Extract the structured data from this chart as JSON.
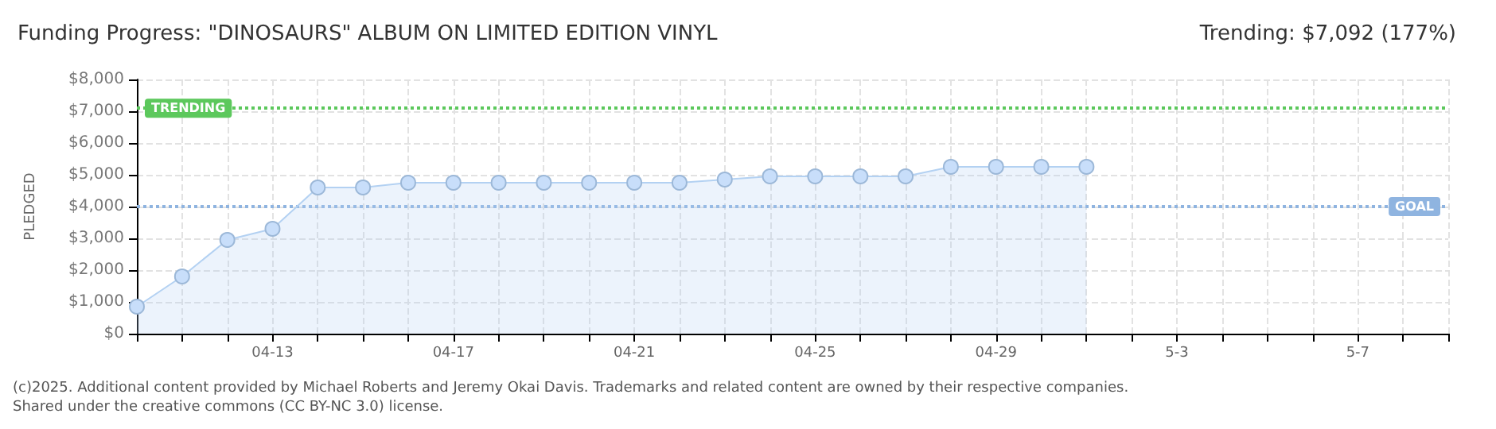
{
  "chart_data": {
    "type": "area",
    "title": "Funding Progress: \"DINOSAURS\" ALBUM ON LIMITED EDITION VINYL",
    "subtitle": "Trending: $7,092 (177%)",
    "ylabel": "PLEDGED",
    "x": [
      "2025-04-10",
      "2025-04-11",
      "2025-04-12",
      "2025-04-13",
      "2025-04-14",
      "2025-04-15",
      "2025-04-16",
      "2025-04-17",
      "2025-04-18",
      "2025-04-19",
      "2025-04-20",
      "2025-04-21",
      "2025-04-22",
      "2025-04-23",
      "2025-04-24",
      "2025-04-25",
      "2025-04-26",
      "2025-04-27",
      "2025-04-28",
      "2025-04-29",
      "2025-04-30",
      "2025-05-01"
    ],
    "series": [
      {
        "color": "#b3d1f2",
        "values": [
          850,
          1800,
          2950,
          3300,
          4600,
          4600,
          4750,
          4750,
          4750,
          4750,
          4750,
          4750,
          4750,
          4850,
          4950,
          4950,
          4950,
          4950,
          5250,
          5250,
          5250,
          5250
        ]
      }
    ],
    "xlim": [
      "2025-04-10",
      "2025-05-09"
    ],
    "xticks": [
      {
        "value": "2025-04-10",
        "label": null
      },
      {
        "value": "2025-04-11",
        "label": null
      },
      {
        "value": "2025-04-12",
        "label": null
      },
      {
        "value": "2025-04-13",
        "label": "04-13"
      },
      {
        "value": "2025-04-14",
        "label": null
      },
      {
        "value": "2025-04-15",
        "label": null
      },
      {
        "value": "2025-04-16",
        "label": null
      },
      {
        "value": "2025-04-17",
        "label": "04-17"
      },
      {
        "value": "2025-04-18",
        "label": null
      },
      {
        "value": "2025-04-19",
        "label": null
      },
      {
        "value": "2025-04-20",
        "label": null
      },
      {
        "value": "2025-04-21",
        "label": "04-21"
      },
      {
        "value": "2025-04-22",
        "label": null
      },
      {
        "value": "2025-04-23",
        "label": null
      },
      {
        "value": "2025-04-24",
        "label": null
      },
      {
        "value": "2025-04-25",
        "label": "04-25"
      },
      {
        "value": "2025-04-26",
        "label": null
      },
      {
        "value": "2025-04-27",
        "label": null
      },
      {
        "value": "2025-04-28",
        "label": null
      },
      {
        "value": "2025-04-29",
        "label": "04-29"
      },
      {
        "value": "2025-04-30",
        "label": null
      },
      {
        "value": "2025-05-01",
        "label": null
      },
      {
        "value": "2025-05-02",
        "label": null
      },
      {
        "value": "2025-05-03",
        "label": "5-3"
      },
      {
        "value": "2025-05-04",
        "label": null
      },
      {
        "value": "2025-05-05",
        "label": null
      },
      {
        "value": "2025-05-06",
        "label": null
      },
      {
        "value": "2025-05-07",
        "label": "5-7"
      },
      {
        "value": "2025-05-08",
        "label": null
      },
      {
        "value": "2025-05-09",
        "label": null
      }
    ],
    "ylim": [
      0,
      8000
    ],
    "yticks": [
      {
        "value": 0,
        "label": "$0"
      },
      {
        "value": 1000,
        "label": "$1,000"
      },
      {
        "value": 2000,
        "label": "$2,000"
      },
      {
        "value": 3000,
        "label": "$3,000"
      },
      {
        "value": 4000,
        "label": "$4,000"
      },
      {
        "value": 5000,
        "label": "$5,000"
      },
      {
        "value": 6000,
        "label": "$6,000"
      },
      {
        "value": 7000,
        "label": "$7,000"
      },
      {
        "value": 8000,
        "label": "$8,000"
      }
    ],
    "ref_lines": [
      {
        "axis": "y",
        "value": 7092,
        "label": "TRENDING",
        "color": "#5cc85c",
        "line_style": "dotted"
      },
      {
        "axis": "y",
        "value": 4000,
        "label": "GOAL",
        "color": "#8fb4e0",
        "line_style": "dotted"
      }
    ],
    "grid": true,
    "marker": "circle",
    "annotations": [
      "(c)2025. Additional content provided by Michael Roberts and Jeremy Okai Davis. Trademarks and related content are owned by their respective companies.",
      "Shared under the creative commons (CC BY-NC 3.0) license."
    ]
  }
}
